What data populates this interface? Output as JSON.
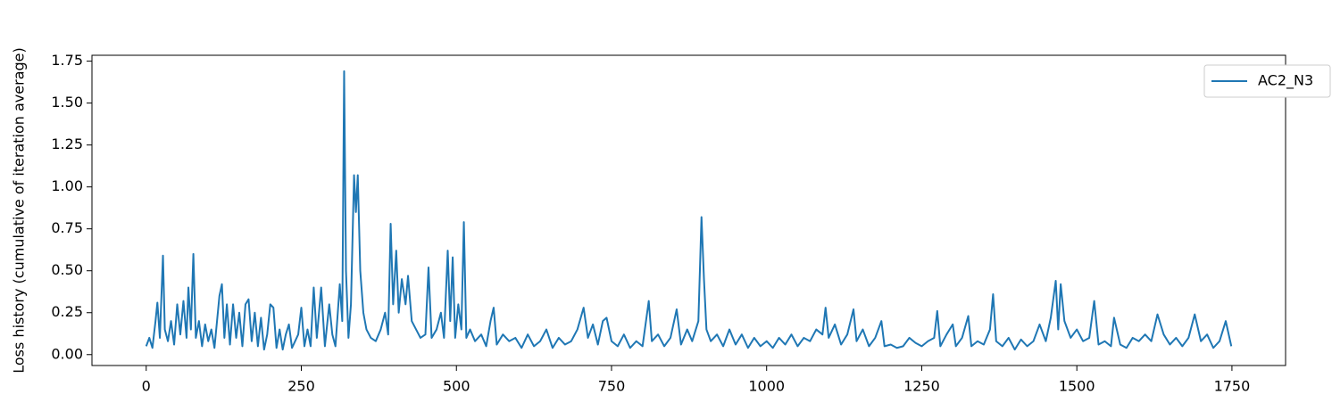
{
  "chart_data": {
    "type": "line",
    "y_label": "Loss history (cumulative of iteration average)",
    "xlim": [
      -87.45,
      1836.45
    ],
    "ylim": [
      -0.065,
      1.785
    ],
    "xticks": [
      0,
      250,
      500,
      750,
      1000,
      1250,
      1500,
      1750
    ],
    "yticks": [
      {
        "value": 0,
        "label": "0.00"
      },
      {
        "value": 0.25,
        "label": "0.25"
      },
      {
        "value": 0.5,
        "label": "0.50"
      },
      {
        "value": 0.75,
        "label": "0.75"
      },
      {
        "value": 1,
        "label": "1.00"
      },
      {
        "value": 1.25,
        "label": "1.25"
      },
      {
        "value": 1.5,
        "label": "1.50"
      },
      {
        "value": 1.75,
        "label": "1.75"
      }
    ],
    "grid": false,
    "legend": "upper right",
    "x": [
      0,
      5,
      10,
      15,
      18,
      22,
      27,
      30,
      35,
      40,
      45,
      50,
      55,
      60,
      65,
      68,
      72,
      76,
      80,
      85,
      90,
      95,
      100,
      105,
      110,
      118,
      122,
      126,
      130,
      135,
      140,
      145,
      150,
      155,
      160,
      165,
      170,
      175,
      180,
      185,
      190,
      195,
      200,
      205,
      210,
      215,
      220,
      225,
      230,
      235,
      245,
      250,
      255,
      260,
      265,
      270,
      275,
      282,
      288,
      295,
      300,
      305,
      312,
      316,
      319,
      322,
      326,
      330,
      335,
      338,
      341,
      345,
      350,
      355,
      362,
      370,
      378,
      385,
      390,
      394,
      398,
      403,
      407,
      412,
      418,
      422,
      428,
      435,
      442,
      450,
      455,
      460,
      468,
      475,
      480,
      486,
      490,
      494,
      498,
      503,
      508,
      512,
      516,
      522,
      530,
      540,
      548,
      555,
      560,
      565,
      575,
      585,
      595,
      605,
      615,
      625,
      635,
      645,
      655,
      665,
      675,
      685,
      695,
      705,
      712,
      720,
      728,
      736,
      742,
      750,
      760,
      770,
      780,
      790,
      800,
      810,
      815,
      825,
      835,
      845,
      855,
      862,
      872,
      880,
      890,
      895,
      899,
      903,
      910,
      920,
      930,
      940,
      950,
      960,
      970,
      980,
      990,
      1000,
      1010,
      1020,
      1030,
      1040,
      1050,
      1060,
      1070,
      1080,
      1090,
      1095,
      1100,
      1110,
      1120,
      1130,
      1140,
      1145,
      1155,
      1165,
      1175,
      1185,
      1190,
      1200,
      1210,
      1220,
      1230,
      1240,
      1250,
      1260,
      1270,
      1275,
      1280,
      1290,
      1300,
      1305,
      1315,
      1325,
      1330,
      1340,
      1350,
      1360,
      1365,
      1370,
      1380,
      1390,
      1400,
      1410,
      1420,
      1430,
      1440,
      1450,
      1458,
      1466,
      1470,
      1474,
      1480,
      1490,
      1500,
      1510,
      1520,
      1528,
      1535,
      1545,
      1555,
      1560,
      1570,
      1580,
      1590,
      1600,
      1610,
      1620,
      1630,
      1640,
      1650,
      1660,
      1670,
      1680,
      1690,
      1700,
      1710,
      1720,
      1730,
      1740,
      1749
    ],
    "series": [
      {
        "name": "AC2_N3",
        "color": "#1f77b4",
        "values": [
          0.05,
          0.1,
          0.04,
          0.2,
          0.31,
          0.1,
          0.59,
          0.15,
          0.08,
          0.2,
          0.06,
          0.3,
          0.12,
          0.32,
          0.1,
          0.4,
          0.15,
          0.6,
          0.1,
          0.2,
          0.05,
          0.18,
          0.08,
          0.15,
          0.04,
          0.35,
          0.42,
          0.1,
          0.3,
          0.06,
          0.3,
          0.1,
          0.25,
          0.05,
          0.3,
          0.33,
          0.08,
          0.25,
          0.05,
          0.22,
          0.03,
          0.12,
          0.3,
          0.28,
          0.04,
          0.15,
          0.03,
          0.12,
          0.18,
          0.04,
          0.12,
          0.28,
          0.05,
          0.15,
          0.05,
          0.4,
          0.1,
          0.4,
          0.05,
          0.3,
          0.12,
          0.05,
          0.42,
          0.2,
          1.69,
          0.5,
          0.1,
          0.3,
          1.07,
          0.85,
          1.07,
          0.5,
          0.25,
          0.15,
          0.1,
          0.08,
          0.15,
          0.25,
          0.12,
          0.78,
          0.3,
          0.62,
          0.25,
          0.45,
          0.3,
          0.47,
          0.2,
          0.15,
          0.1,
          0.12,
          0.52,
          0.1,
          0.15,
          0.25,
          0.1,
          0.62,
          0.2,
          0.58,
          0.1,
          0.3,
          0.15,
          0.79,
          0.1,
          0.15,
          0.08,
          0.12,
          0.05,
          0.2,
          0.28,
          0.06,
          0.12,
          0.08,
          0.1,
          0.04,
          0.12,
          0.05,
          0.08,
          0.15,
          0.04,
          0.1,
          0.06,
          0.08,
          0.15,
          0.28,
          0.1,
          0.18,
          0.06,
          0.2,
          0.22,
          0.08,
          0.05,
          0.12,
          0.04,
          0.08,
          0.05,
          0.32,
          0.08,
          0.12,
          0.05,
          0.1,
          0.27,
          0.06,
          0.15,
          0.08,
          0.2,
          0.82,
          0.45,
          0.15,
          0.08,
          0.12,
          0.05,
          0.15,
          0.06,
          0.12,
          0.04,
          0.1,
          0.05,
          0.08,
          0.04,
          0.1,
          0.06,
          0.12,
          0.05,
          0.1,
          0.08,
          0.15,
          0.12,
          0.28,
          0.1,
          0.18,
          0.06,
          0.12,
          0.27,
          0.08,
          0.15,
          0.05,
          0.1,
          0.2,
          0.05,
          0.06,
          0.04,
          0.05,
          0.1,
          0.07,
          0.05,
          0.08,
          0.1,
          0.26,
          0.05,
          0.12,
          0.18,
          0.05,
          0.1,
          0.23,
          0.05,
          0.08,
          0.06,
          0.15,
          0.36,
          0.08,
          0.05,
          0.1,
          0.03,
          0.09,
          0.05,
          0.08,
          0.18,
          0.08,
          0.22,
          0.44,
          0.15,
          0.42,
          0.2,
          0.1,
          0.15,
          0.08,
          0.1,
          0.32,
          0.06,
          0.08,
          0.05,
          0.22,
          0.06,
          0.04,
          0.1,
          0.08,
          0.12,
          0.08,
          0.24,
          0.12,
          0.06,
          0.1,
          0.05,
          0.1,
          0.24,
          0.08,
          0.12,
          0.04,
          0.08,
          0.2,
          0.05
        ]
      }
    ]
  }
}
